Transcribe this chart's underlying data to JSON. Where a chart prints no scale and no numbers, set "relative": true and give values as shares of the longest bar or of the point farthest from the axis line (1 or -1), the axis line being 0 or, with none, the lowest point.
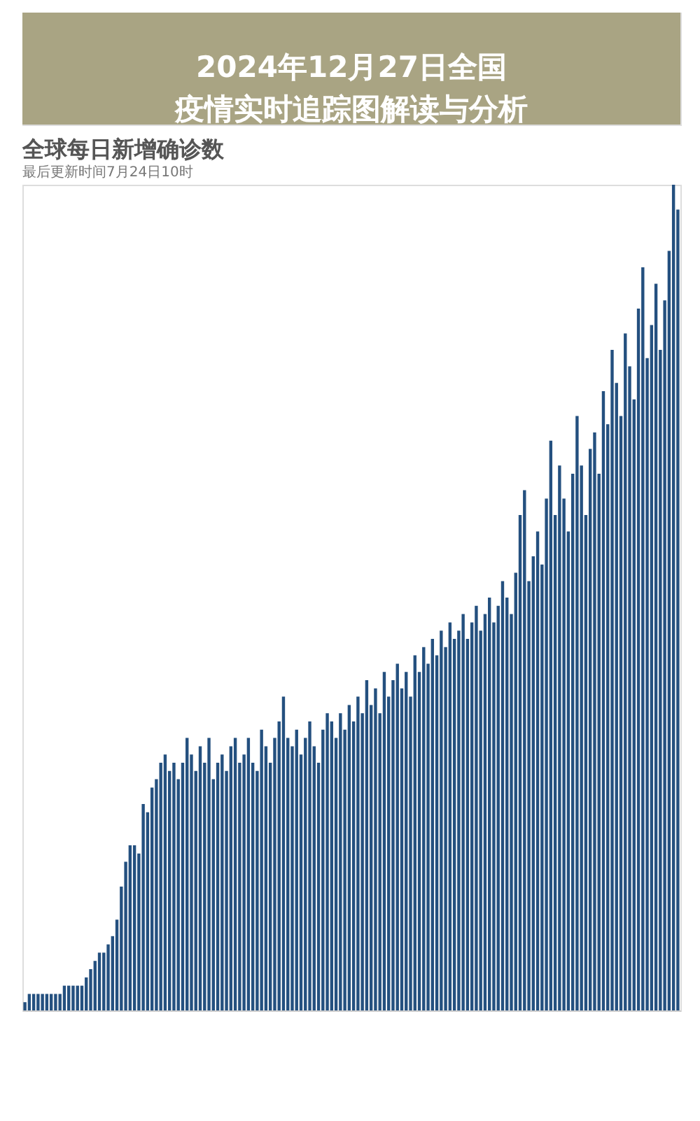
{
  "chart_data": {
    "type": "bar",
    "title": "全球每日新增确诊数",
    "subtitle": "最后更新时间7月24日10时",
    "annotations": [
      "2024年12月27日全国疫情实时追踪图解读与分析"
    ],
    "relative": true,
    "categories": [
      null,
      null,
      null,
      null,
      null,
      null,
      null,
      null,
      null,
      null,
      null,
      null,
      null,
      null,
      null,
      null,
      null,
      null,
      null,
      null,
      null,
      null,
      null,
      null,
      null,
      null,
      null,
      null,
      null,
      null,
      null,
      null,
      null,
      null,
      null,
      null,
      null,
      null,
      null,
      null,
      null,
      null,
      null,
      null,
      null,
      null,
      null,
      null,
      null,
      null,
      null,
      null,
      null,
      null,
      null,
      null,
      null,
      null,
      null,
      null,
      null,
      null,
      null,
      null,
      null,
      null,
      null,
      null,
      null,
      null,
      null,
      null,
      null,
      null,
      null,
      null,
      null,
      null,
      null,
      null,
      null,
      null,
      null,
      null,
      null,
      null,
      null,
      null,
      null,
      null,
      null,
      null,
      null,
      null,
      null,
      null,
      null,
      null,
      null,
      null,
      null,
      null,
      null,
      null,
      null,
      null,
      null,
      null,
      null,
      null,
      null,
      null,
      null,
      null,
      null,
      null,
      null,
      null,
      null,
      null,
      null,
      null,
      null,
      null,
      null,
      null,
      null,
      null,
      null,
      null,
      null,
      null,
      null,
      null,
      null,
      null,
      null,
      null,
      null,
      null,
      null,
      null,
      null,
      null,
      null,
      null,
      null,
      null,
      null,
      null
    ],
    "series": [
      {
        "color": "#24507f",
        "values": [
          0.01,
          0.02,
          0.02,
          0.02,
          0.02,
          0.02,
          0.02,
          0.02,
          0.02,
          0.03,
          0.03,
          0.03,
          0.03,
          0.03,
          0.04,
          0.05,
          0.06,
          0.07,
          0.07,
          0.08,
          0.09,
          0.11,
          0.15,
          0.18,
          0.2,
          0.2,
          0.19,
          0.25,
          0.24,
          0.27,
          0.28,
          0.3,
          0.31,
          0.29,
          0.3,
          0.28,
          0.3,
          0.33,
          0.31,
          0.29,
          0.32,
          0.3,
          0.33,
          0.28,
          0.3,
          0.31,
          0.29,
          0.32,
          0.33,
          0.3,
          0.31,
          0.33,
          0.3,
          0.29,
          0.34,
          0.32,
          0.3,
          0.33,
          0.35,
          0.38,
          0.33,
          0.32,
          0.34,
          0.31,
          0.33,
          0.35,
          0.32,
          0.3,
          0.34,
          0.36,
          0.35,
          0.33,
          0.36,
          0.34,
          0.37,
          0.35,
          0.38,
          0.36,
          0.4,
          0.37,
          0.39,
          0.36,
          0.41,
          0.38,
          0.4,
          0.42,
          0.39,
          0.41,
          0.38,
          0.43,
          0.41,
          0.44,
          0.42,
          0.45,
          0.43,
          0.46,
          0.44,
          0.47,
          0.45,
          0.46,
          0.48,
          0.45,
          0.47,
          0.49,
          0.46,
          0.48,
          0.5,
          0.47,
          0.49,
          0.52,
          0.5,
          0.48,
          0.53,
          0.6,
          0.63,
          0.52,
          0.55,
          0.58,
          0.54,
          0.62,
          0.69,
          0.6,
          0.66,
          0.62,
          0.58,
          0.65,
          0.72,
          0.66,
          0.6,
          0.68,
          0.7,
          0.65,
          0.75,
          0.71,
          0.8,
          0.76,
          0.72,
          0.82,
          0.78,
          0.74,
          0.85,
          0.9,
          0.79,
          0.83,
          0.88,
          0.8,
          0.86,
          0.92,
          1,
          0.97
        ]
      }
    ]
  }
}
